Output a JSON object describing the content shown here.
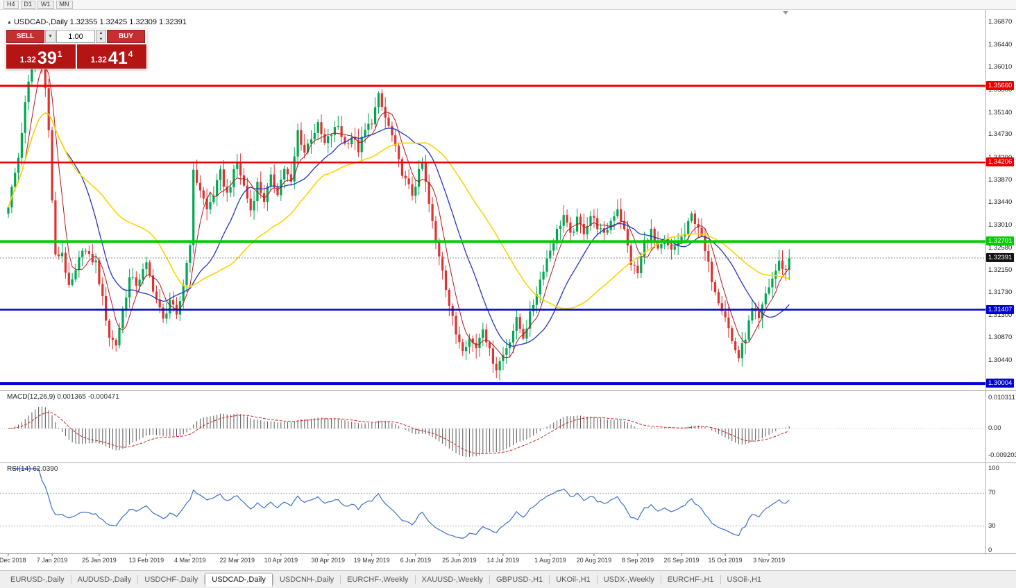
{
  "toolbar": {
    "timeframes": [
      "H4",
      "D1",
      "W1",
      "MN"
    ]
  },
  "symbol_info": {
    "marker": "▲",
    "symbol": "USDCAD-,Daily",
    "open": "1.32355",
    "high": "1.32425",
    "low": "1.32309",
    "close": "1.32391"
  },
  "trade_panel": {
    "sell_label": "SELL",
    "buy_label": "BUY",
    "volume": "1.00",
    "dropdown_icon": "▼",
    "spin_up": "▲",
    "spin_down": "▼",
    "sell_price": {
      "prefix": "1.32",
      "big": "39",
      "sup": "1"
    },
    "buy_price": {
      "prefix": "1.32",
      "big": "41",
      "sup": "4"
    }
  },
  "price_axis": {
    "ticks": [
      "1.36870",
      "1.36440",
      "1.36010",
      "1.35580",
      "1.35140",
      "1.34730",
      "1.34290",
      "1.33870",
      "1.33440",
      "1.33010",
      "1.32580",
      "1.32150",
      "1.31730",
      "1.31300",
      "1.30870",
      "1.30440"
    ],
    "current_price": {
      "text": "1.32391",
      "bg": "#141414"
    }
  },
  "hlines": [
    {
      "text": "1.35660",
      "price": 1.3566,
      "color": "#e80000",
      "width": 3
    },
    {
      "text": "1.34206",
      "price": 1.34206,
      "color": "#e80000",
      "width": 2.5
    },
    {
      "text": "1.32701",
      "price": 1.32701,
      "color": "#00cc00",
      "width": 4
    },
    {
      "text": "1.31407",
      "price": 1.31407,
      "color": "#0000d8",
      "width": 2.5
    },
    {
      "text": "1.30004",
      "price": 1.30004,
      "color": "#0000d8",
      "width": 4
    }
  ],
  "current_price_line": {
    "price": 1.32391,
    "color": "#888888"
  },
  "time_axis": [
    {
      "label": "19 Dec 2018",
      "i": 0
    },
    {
      "label": "7 Jan 2019",
      "i": 13
    },
    {
      "label": "25 Jan 2019",
      "i": 27
    },
    {
      "label": "13 Feb 2019",
      "i": 41
    },
    {
      "label": "4 Mar 2019",
      "i": 54
    },
    {
      "label": "22 Mar 2019",
      "i": 68
    },
    {
      "label": "10 Apr 2019",
      "i": 81
    },
    {
      "label": "30 Apr 2019",
      "i": 95
    },
    {
      "label": "19 May 2019",
      "i": 108
    },
    {
      "label": "6 Jun 2019",
      "i": 121
    },
    {
      "label": "25 Jun 2019",
      "i": 134
    },
    {
      "label": "14 Jul 2019",
      "i": 147
    },
    {
      "label": "1 Aug 2019",
      "i": 161
    },
    {
      "label": "20 Aug 2019",
      "i": 174
    },
    {
      "label": "8 Sep 2019",
      "i": 187
    },
    {
      "label": "26 Sep 2019",
      "i": 200
    },
    {
      "label": "15 Oct 2019",
      "i": 213
    },
    {
      "label": "3 Nov 2019",
      "i": 226
    }
  ],
  "macd_panel": {
    "label": "MACD(12,26,9)",
    "values": "0.001365 -0.000471",
    "axis_top": "0.010311",
    "axis_zero": "0.00",
    "axis_bottom": "-0.009203",
    "hist_color": "#555555",
    "signal_color": "#cc2222"
  },
  "rsi_panel": {
    "label": "RSI(14)",
    "value": "62.0390",
    "axis": [
      "100",
      "70",
      "30",
      "0"
    ],
    "levels": [
      70,
      30
    ],
    "line_color": "#3a6fc8"
  },
  "tabs": [
    {
      "label": "EURUSD-,Daily",
      "active": false
    },
    {
      "label": "AUDUSD-,Daily",
      "active": false
    },
    {
      "label": "USDCHF-,Daily",
      "active": false
    },
    {
      "label": "USDCAD-,Daily",
      "active": true
    },
    {
      "label": "USDCNH-,Daily",
      "active": false
    },
    {
      "label": "EURCHF-,Weekly",
      "active": false
    },
    {
      "label": "XAUUSD-,Weekly",
      "active": false
    },
    {
      "label": "GBPUSD-,H1",
      "active": false
    },
    {
      "label": "UKOil-,H1",
      "active": false
    },
    {
      "label": "USDX-,Weekly",
      "active": false
    },
    {
      "label": "EURCHF-,H1",
      "active": false
    },
    {
      "label": "USOil-,H1",
      "active": false
    }
  ],
  "chart_data": {
    "type": "candlestick",
    "title": "USDCAD-,Daily",
    "symbol": "USDCAD",
    "timeframe": "Daily",
    "visible_range": [
      "19 Dec 2018",
      "12 Nov 2019"
    ],
    "price_range": [
      1.2989,
      1.3708
    ],
    "n_candles": 233,
    "last_close": 1.32391,
    "bull_color": "#00a651",
    "bear_color": "#e03131",
    "close_anchors": [
      [
        0,
        1.334
      ],
      [
        3,
        1.343
      ],
      [
        5,
        1.353
      ],
      [
        7,
        1.361
      ],
      [
        9,
        1.365
      ],
      [
        11,
        1.356
      ],
      [
        12,
        1.348
      ],
      [
        13,
        1.335
      ],
      [
        14,
        1.324
      ],
      [
        16,
        1.325
      ],
      [
        18,
        1.318
      ],
      [
        20,
        1.321
      ],
      [
        22,
        1.326
      ],
      [
        24,
        1.324
      ],
      [
        26,
        1.323
      ],
      [
        28,
        1.316
      ],
      [
        30,
        1.309
      ],
      [
        32,
        1.3075
      ],
      [
        34,
        1.314
      ],
      [
        36,
        1.32
      ],
      [
        38,
        1.319
      ],
      [
        41,
        1.3225
      ],
      [
        44,
        1.316
      ],
      [
        46,
        1.312
      ],
      [
        48,
        1.316
      ],
      [
        50,
        1.3125
      ],
      [
        52,
        1.319
      ],
      [
        54,
        1.327
      ],
      [
        55,
        1.34
      ],
      [
        57,
        1.337
      ],
      [
        59,
        1.333
      ],
      [
        61,
        1.336
      ],
      [
        63,
        1.34
      ],
      [
        65,
        1.336
      ],
      [
        67,
        1.34
      ],
      [
        68,
        1.342
      ],
      [
        70,
        1.3375
      ],
      [
        72,
        1.333
      ],
      [
        74,
        1.338
      ],
      [
        76,
        1.335
      ],
      [
        78,
        1.339
      ],
      [
        80,
        1.3365
      ],
      [
        82,
        1.341
      ],
      [
        84,
        1.338
      ],
      [
        86,
        1.348
      ],
      [
        88,
        1.344
      ],
      [
        90,
        1.347
      ],
      [
        92,
        1.349
      ],
      [
        94,
        1.3455
      ],
      [
        96,
        1.3475
      ],
      [
        98,
        1.349
      ],
      [
        100,
        1.3455
      ],
      [
        102,
        1.347
      ],
      [
        104,
        1.3445
      ],
      [
        106,
        1.348
      ],
      [
        108,
        1.35
      ],
      [
        110,
        1.3545
      ],
      [
        112,
        1.3505
      ],
      [
        114,
        1.347
      ],
      [
        116,
        1.342
      ],
      [
        118,
        1.3385
      ],
      [
        120,
        1.336
      ],
      [
        122,
        1.34
      ],
      [
        123,
        1.342
      ],
      [
        125,
        1.334
      ],
      [
        127,
        1.327
      ],
      [
        129,
        1.322
      ],
      [
        131,
        1.315
      ],
      [
        133,
        1.3095
      ],
      [
        135,
        1.307
      ],
      [
        137,
        1.3085
      ],
      [
        139,
        1.307
      ],
      [
        141,
        1.311
      ],
      [
        143,
        1.306
      ],
      [
        145,
        1.303
      ],
      [
        147,
        1.3055
      ],
      [
        149,
        1.3085
      ],
      [
        151,
        1.312
      ],
      [
        153,
        1.309
      ],
      [
        155,
        1.313
      ],
      [
        157,
        1.3175
      ],
      [
        159,
        1.322
      ],
      [
        161,
        1.3255
      ],
      [
        163,
        1.329
      ],
      [
        165,
        1.332
      ],
      [
        167,
        1.328
      ],
      [
        169,
        1.331
      ],
      [
        171,
        1.329
      ],
      [
        173,
        1.332
      ],
      [
        175,
        1.33
      ],
      [
        177,
        1.328
      ],
      [
        179,
        1.331
      ],
      [
        181,
        1.3335
      ],
      [
        183,
        1.329
      ],
      [
        185,
        1.323
      ],
      [
        187,
        1.321
      ],
      [
        189,
        1.327
      ],
      [
        191,
        1.329
      ],
      [
        193,
        1.325
      ],
      [
        195,
        1.327
      ],
      [
        197,
        1.325
      ],
      [
        199,
        1.327
      ],
      [
        201,
        1.3285
      ],
      [
        203,
        1.332
      ],
      [
        205,
        1.33
      ],
      [
        207,
        1.325
      ],
      [
        209,
        1.32
      ],
      [
        211,
        1.316
      ],
      [
        213,
        1.313
      ],
      [
        215,
        1.308
      ],
      [
        217,
        1.305
      ],
      [
        219,
        1.309
      ],
      [
        221,
        1.314
      ],
      [
        223,
        1.312
      ],
      [
        225,
        1.317
      ],
      [
        227,
        1.32
      ],
      [
        229,
        1.323
      ],
      [
        231,
        1.3215
      ],
      [
        232,
        1.32391
      ]
    ],
    "moving_averages": [
      {
        "period": 6,
        "color": "#b01818",
        "width": 1
      },
      {
        "period": 18,
        "color": "#2233bb",
        "width": 1.3
      },
      {
        "period": 40,
        "color": "#ffd300",
        "width": 1.6
      }
    ],
    "indicators": [
      {
        "name": "MACD",
        "params": [
          12,
          26,
          9
        ],
        "values": [
          0.001365,
          -0.000471
        ]
      },
      {
        "name": "RSI",
        "params": [
          14
        ],
        "value": 62.039
      }
    ]
  }
}
